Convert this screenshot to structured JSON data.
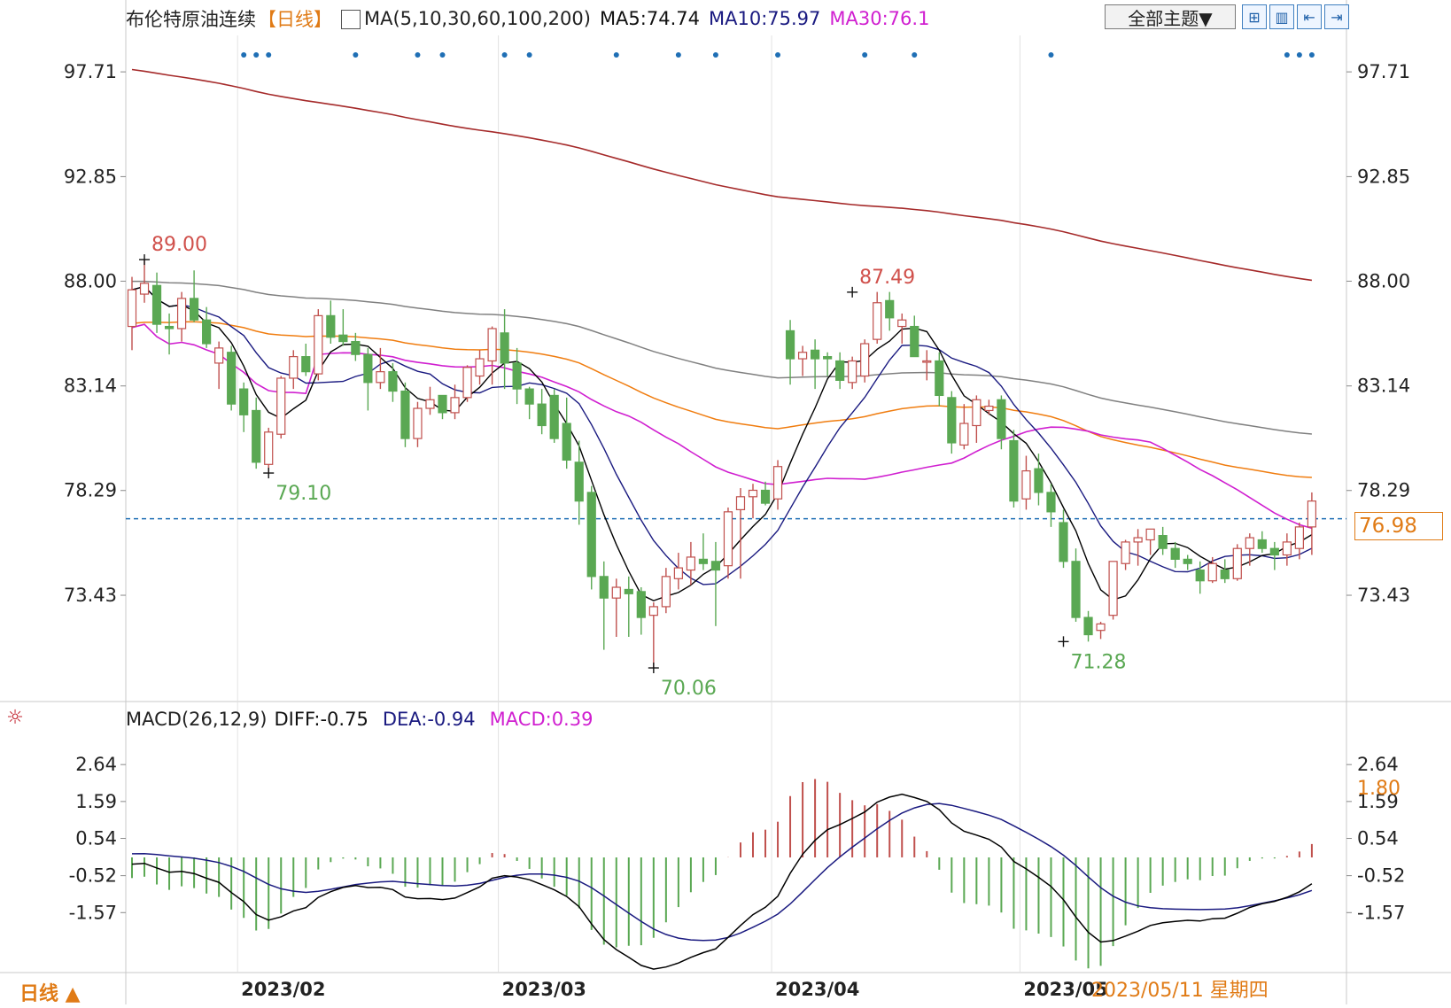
{
  "header": {
    "title": "布伦特原油连续",
    "period": "【日线】",
    "ma_label": "MA(5,10,30,60,100,200)",
    "ma5": "MA5:74.74",
    "ma10": "MA10:75.97",
    "ma30": "MA30:76.1"
  },
  "toolbar": {
    "theme": "全部主题▼",
    "btn1": "⊞",
    "btn2": "▥",
    "btn3": "⇤",
    "btn4": "⇥"
  },
  "macd_header": {
    "label": "MACD(26,12,9)",
    "diff": "DIFF:-0.75",
    "dea": "DEA:-0.94",
    "macd": "MACD:0.39"
  },
  "footer": {
    "period": "日线 ▲",
    "date": "2023/05/11 星期四"
  },
  "price_tag": "76.98",
  "macd_tag": "1.80",
  "colors": {
    "up": "#c0504d",
    "down": "#5aa853",
    "ma5": "#000000",
    "ma10": "#1a1a80",
    "ma30": "#d01fd0",
    "ma60": "#f07d10",
    "ma100": "#808080",
    "ma200": "#a52a2a",
    "accent": "#e07b16"
  },
  "chart_data": [
    {
      "type": "candlestick",
      "title": "布伦特原油连续",
      "ylim": [
        68.5,
        99.4
      ],
      "yticks": [
        "97.71",
        "92.85",
        "88.00",
        "83.14",
        "78.29",
        "73.43"
      ],
      "xticks": [
        {
          "label": "2023/02",
          "i": 9
        },
        {
          "label": "2023/03",
          "i": 30
        },
        {
          "label": "2023/04",
          "i": 52
        },
        {
          "label": "2023/05",
          "i": 72
        }
      ],
      "reference_price": 76.98,
      "annotations": [
        {
          "i": 1,
          "value": 89.0,
          "label": "89.00",
          "kind": "high"
        },
        {
          "i": 11,
          "value": 79.1,
          "label": "79.10",
          "kind": "low"
        },
        {
          "i": 42,
          "value": 70.06,
          "label": "70.06",
          "kind": "low"
        },
        {
          "i": 58,
          "value": 87.49,
          "label": "87.49",
          "kind": "high"
        },
        {
          "i": 75,
          "value": 71.28,
          "label": "71.28",
          "kind": "low"
        }
      ],
      "event_markers": [
        9,
        10,
        11,
        18,
        23,
        25,
        30,
        32,
        39,
        44,
        47,
        52,
        59,
        63,
        74,
        93,
        94,
        95
      ],
      "candles": [
        {
          "o": 85.9,
          "h": 88.2,
          "l": 84.8,
          "c": 87.6
        },
        {
          "o": 87.4,
          "h": 89.0,
          "l": 87.0,
          "c": 87.9
        },
        {
          "o": 87.8,
          "h": 88.4,
          "l": 85.6,
          "c": 86.0
        },
        {
          "o": 85.9,
          "h": 86.5,
          "l": 84.6,
          "c": 85.8
        },
        {
          "o": 85.8,
          "h": 87.5,
          "l": 85.2,
          "c": 87.2
        },
        {
          "o": 87.2,
          "h": 88.5,
          "l": 86.1,
          "c": 86.2
        },
        {
          "o": 86.2,
          "h": 86.8,
          "l": 84.9,
          "c": 85.1
        },
        {
          "o": 84.2,
          "h": 85.2,
          "l": 83.0,
          "c": 84.9
        },
        {
          "o": 84.7,
          "h": 85.0,
          "l": 82.0,
          "c": 82.3
        },
        {
          "o": 83.0,
          "h": 83.3,
          "l": 81.0,
          "c": 81.8
        },
        {
          "o": 82.0,
          "h": 82.6,
          "l": 79.3,
          "c": 79.6
        },
        {
          "o": 79.5,
          "h": 81.2,
          "l": 79.1,
          "c": 81.0
        },
        {
          "o": 80.9,
          "h": 83.6,
          "l": 80.7,
          "c": 83.5
        },
        {
          "o": 83.5,
          "h": 84.8,
          "l": 83.0,
          "c": 84.5
        },
        {
          "o": 84.5,
          "h": 85.1,
          "l": 83.6,
          "c": 83.8
        },
        {
          "o": 83.7,
          "h": 86.7,
          "l": 83.4,
          "c": 86.4
        },
        {
          "o": 86.4,
          "h": 87.1,
          "l": 85.1,
          "c": 85.4
        },
        {
          "o": 85.5,
          "h": 86.7,
          "l": 85.0,
          "c": 85.2
        },
        {
          "o": 85.2,
          "h": 85.6,
          "l": 84.3,
          "c": 84.6
        },
        {
          "o": 84.6,
          "h": 84.9,
          "l": 82.0,
          "c": 83.3
        },
        {
          "o": 83.3,
          "h": 84.9,
          "l": 83.0,
          "c": 83.8
        },
        {
          "o": 83.8,
          "h": 84.2,
          "l": 82.4,
          "c": 82.9
        },
        {
          "o": 82.9,
          "h": 83.3,
          "l": 80.3,
          "c": 80.7
        },
        {
          "o": 80.7,
          "h": 82.4,
          "l": 80.3,
          "c": 82.1
        },
        {
          "o": 82.1,
          "h": 83.1,
          "l": 81.8,
          "c": 82.5
        },
        {
          "o": 82.7,
          "h": 82.7,
          "l": 81.6,
          "c": 81.9
        },
        {
          "o": 81.9,
          "h": 83.2,
          "l": 81.6,
          "c": 82.6
        },
        {
          "o": 82.6,
          "h": 84.1,
          "l": 82.4,
          "c": 84.0
        },
        {
          "o": 83.6,
          "h": 84.8,
          "l": 83.2,
          "c": 84.4
        },
        {
          "o": 84.3,
          "h": 85.9,
          "l": 83.2,
          "c": 85.8
        },
        {
          "o": 85.6,
          "h": 86.7,
          "l": 83.0,
          "c": 84.2
        },
        {
          "o": 84.2,
          "h": 84.9,
          "l": 82.3,
          "c": 83.0
        },
        {
          "o": 83.0,
          "h": 83.1,
          "l": 81.6,
          "c": 82.3
        },
        {
          "o": 82.3,
          "h": 83.0,
          "l": 80.9,
          "c": 81.3
        },
        {
          "o": 82.7,
          "h": 83.0,
          "l": 80.5,
          "c": 80.7
        },
        {
          "o": 81.4,
          "h": 82.6,
          "l": 79.3,
          "c": 79.7
        },
        {
          "o": 79.6,
          "h": 80.6,
          "l": 76.7,
          "c": 77.8
        },
        {
          "o": 78.2,
          "h": 78.5,
          "l": 73.7,
          "c": 74.3
        },
        {
          "o": 74.3,
          "h": 75.0,
          "l": 70.9,
          "c": 73.3
        },
        {
          "o": 73.3,
          "h": 74.2,
          "l": 71.5,
          "c": 73.8
        },
        {
          "o": 73.7,
          "h": 74.3,
          "l": 71.5,
          "c": 73.5
        },
        {
          "o": 73.6,
          "h": 73.8,
          "l": 71.6,
          "c": 72.4
        },
        {
          "o": 72.5,
          "h": 73.1,
          "l": 70.06,
          "c": 72.9
        },
        {
          "o": 72.9,
          "h": 74.7,
          "l": 72.6,
          "c": 74.3
        },
        {
          "o": 74.2,
          "h": 75.4,
          "l": 73.7,
          "c": 74.7
        },
        {
          "o": 74.6,
          "h": 75.9,
          "l": 73.9,
          "c": 75.2
        },
        {
          "o": 75.1,
          "h": 76.3,
          "l": 74.6,
          "c": 74.9
        },
        {
          "o": 75.0,
          "h": 75.9,
          "l": 72.0,
          "c": 74.6
        },
        {
          "o": 74.8,
          "h": 77.5,
          "l": 74.2,
          "c": 77.3
        },
        {
          "o": 77.4,
          "h": 78.4,
          "l": 74.2,
          "c": 78.0
        },
        {
          "o": 78.0,
          "h": 78.6,
          "l": 77.0,
          "c": 78.3
        },
        {
          "o": 78.3,
          "h": 78.7,
          "l": 77.6,
          "c": 77.7
        },
        {
          "o": 77.9,
          "h": 79.7,
          "l": 77.4,
          "c": 79.4
        },
        {
          "o": 85.7,
          "h": 86.2,
          "l": 83.2,
          "c": 84.4
        },
        {
          "o": 84.4,
          "h": 85.0,
          "l": 83.6,
          "c": 84.7
        },
        {
          "o": 84.8,
          "h": 85.3,
          "l": 83.0,
          "c": 84.4
        },
        {
          "o": 84.5,
          "h": 84.7,
          "l": 83.6,
          "c": 84.4
        },
        {
          "o": 84.3,
          "h": 84.7,
          "l": 83.0,
          "c": 83.4
        },
        {
          "o": 83.3,
          "h": 84.5,
          "l": 83.0,
          "c": 84.3
        },
        {
          "o": 83.6,
          "h": 85.3,
          "l": 83.3,
          "c": 85.1
        },
        {
          "o": 85.3,
          "h": 87.5,
          "l": 85.1,
          "c": 87.0
        },
        {
          "o": 87.1,
          "h": 87.5,
          "l": 85.7,
          "c": 86.3
        },
        {
          "o": 85.9,
          "h": 86.5,
          "l": 85.1,
          "c": 86.2
        },
        {
          "o": 85.9,
          "h": 86.4,
          "l": 84.7,
          "c": 84.5
        },
        {
          "o": 84.3,
          "h": 84.8,
          "l": 83.4,
          "c": 84.3
        },
        {
          "o": 84.3,
          "h": 84.7,
          "l": 82.2,
          "c": 82.7
        },
        {
          "o": 82.6,
          "h": 82.9,
          "l": 80.0,
          "c": 80.5
        },
        {
          "o": 80.4,
          "h": 82.3,
          "l": 80.2,
          "c": 81.4
        },
        {
          "o": 81.3,
          "h": 82.7,
          "l": 80.5,
          "c": 82.5
        },
        {
          "o": 82.0,
          "h": 82.5,
          "l": 81.8,
          "c": 82.2
        },
        {
          "o": 82.5,
          "h": 82.7,
          "l": 80.2,
          "c": 80.7
        },
        {
          "o": 80.6,
          "h": 81.1,
          "l": 77.5,
          "c": 77.8
        },
        {
          "o": 77.9,
          "h": 79.9,
          "l": 77.4,
          "c": 79.2
        },
        {
          "o": 79.3,
          "h": 80.0,
          "l": 77.6,
          "c": 78.2
        },
        {
          "o": 78.2,
          "h": 78.6,
          "l": 76.6,
          "c": 77.3
        },
        {
          "o": 76.8,
          "h": 77.4,
          "l": 74.7,
          "c": 75.0
        },
        {
          "o": 75.0,
          "h": 75.6,
          "l": 72.2,
          "c": 72.4
        },
        {
          "o": 72.4,
          "h": 72.7,
          "l": 71.28,
          "c": 71.6
        },
        {
          "o": 71.8,
          "h": 72.2,
          "l": 71.4,
          "c": 72.1
        },
        {
          "o": 72.5,
          "h": 75.0,
          "l": 72.3,
          "c": 75.0
        },
        {
          "o": 74.9,
          "h": 76.0,
          "l": 74.6,
          "c": 75.9
        },
        {
          "o": 75.9,
          "h": 76.5,
          "l": 74.8,
          "c": 76.1
        },
        {
          "o": 76.0,
          "h": 76.5,
          "l": 75.3,
          "c": 76.5
        },
        {
          "o": 76.2,
          "h": 76.6,
          "l": 75.3,
          "c": 75.6
        },
        {
          "o": 75.6,
          "h": 75.9,
          "l": 74.7,
          "c": 75.1
        },
        {
          "o": 75.1,
          "h": 75.3,
          "l": 74.6,
          "c": 74.9
        },
        {
          "o": 74.6,
          "h": 75.0,
          "l": 73.5,
          "c": 74.1
        },
        {
          "o": 74.1,
          "h": 75.2,
          "l": 74.0,
          "c": 74.9
        },
        {
          "o": 74.6,
          "h": 75.1,
          "l": 74.0,
          "c": 74.2
        },
        {
          "o": 74.2,
          "h": 75.8,
          "l": 74.1,
          "c": 75.6
        },
        {
          "o": 75.6,
          "h": 76.3,
          "l": 74.8,
          "c": 76.1
        },
        {
          "o": 76.0,
          "h": 76.4,
          "l": 75.4,
          "c": 75.6
        },
        {
          "o": 75.6,
          "h": 75.9,
          "l": 74.6,
          "c": 75.3
        },
        {
          "o": 75.3,
          "h": 76.3,
          "l": 74.8,
          "c": 75.9
        },
        {
          "o": 75.6,
          "h": 76.8,
          "l": 75.1,
          "c": 76.6
        },
        {
          "o": 76.6,
          "h": 78.2,
          "l": 75.3,
          "c": 77.8
        }
      ]
    },
    {
      "type": "bar",
      "title": "MACD(26,12,9)",
      "ylim": [
        -3.2,
        3.4
      ],
      "yticks": [
        "2.64",
        "1.59",
        "0.54",
        "-0.52",
        "-1.57"
      ],
      "series": [
        {
          "name": "DIFF",
          "value": -0.75
        },
        {
          "name": "DEA",
          "value": -0.94
        },
        {
          "name": "MACD",
          "value": 0.39
        }
      ]
    }
  ]
}
